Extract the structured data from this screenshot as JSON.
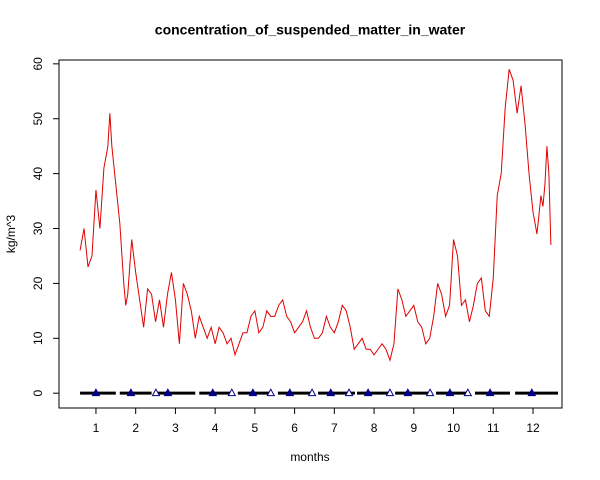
{
  "chart_data": {
    "type": "line",
    "title": "concentration_of_suspended_matter_in_water",
    "x_label": "months",
    "y_label": "kg/m^3",
    "xlim": [
      0.07,
      12.73
    ],
    "ylim": [
      -2.7,
      60.7
    ],
    "xticks": [
      1,
      2,
      3,
      4,
      5,
      6,
      7,
      8,
      9,
      10,
      11,
      12
    ],
    "yticks": [
      0,
      10,
      20,
      30,
      40,
      50,
      60
    ],
    "series": [
      {
        "color": "#e00000",
        "x": [
          0.6,
          0.7,
          0.8,
          0.9,
          1.0,
          1.1,
          1.2,
          1.3,
          1.35,
          1.4,
          1.5,
          1.6,
          1.7,
          1.75,
          1.8,
          1.9,
          2.0,
          2.1,
          2.2,
          2.3,
          2.4,
          2.5,
          2.6,
          2.7,
          2.8,
          2.9,
          3.0,
          3.1,
          3.2,
          3.3,
          3.4,
          3.5,
          3.6,
          3.7,
          3.8,
          3.9,
          4.0,
          4.1,
          4.2,
          4.3,
          4.4,
          4.5,
          4.6,
          4.7,
          4.8,
          4.9,
          5.0,
          5.1,
          5.2,
          5.3,
          5.4,
          5.5,
          5.6,
          5.7,
          5.8,
          5.9,
          6.0,
          6.1,
          6.2,
          6.3,
          6.4,
          6.5,
          6.6,
          6.7,
          6.8,
          6.9,
          7.0,
          7.1,
          7.2,
          7.3,
          7.4,
          7.5,
          7.6,
          7.7,
          7.8,
          7.9,
          8.0,
          8.1,
          8.2,
          8.3,
          8.4,
          8.5,
          8.6,
          8.7,
          8.8,
          8.9,
          9.0,
          9.1,
          9.2,
          9.3,
          9.4,
          9.5,
          9.6,
          9.7,
          9.8,
          9.9,
          10.0,
          10.1,
          10.2,
          10.3,
          10.4,
          10.5,
          10.6,
          10.7,
          10.8,
          10.9,
          11.0,
          11.1,
          11.2,
          11.3,
          11.4,
          11.5,
          11.6,
          11.7,
          11.8,
          11.9,
          12.0,
          12.1,
          12.2,
          12.25,
          12.3,
          12.35,
          12.4,
          12.45
        ],
        "values": [
          26,
          30,
          23,
          25,
          37,
          30,
          41,
          45,
          51,
          45,
          38,
          31,
          20,
          16,
          18,
          28,
          22,
          17,
          12,
          19,
          18,
          13,
          17,
          12,
          18,
          22,
          17,
          9,
          20,
          18,
          15,
          10,
          14,
          12,
          10,
          12,
          9,
          12,
          11,
          9,
          10,
          7,
          9,
          11,
          11,
          14,
          15,
          11,
          12,
          15,
          14,
          14,
          16,
          17,
          14,
          13,
          11,
          12,
          13,
          15,
          12,
          10,
          10,
          11,
          14,
          12,
          11,
          13,
          16,
          15,
          12,
          8,
          9,
          10,
          8,
          8,
          7,
          8,
          9,
          8,
          6,
          9,
          19,
          17,
          14,
          15,
          16,
          13,
          12,
          9,
          10,
          14,
          20,
          18,
          14,
          16,
          28,
          25,
          16,
          17,
          13,
          16,
          20,
          21,
          15,
          14,
          21,
          36,
          40,
          52,
          59,
          57,
          51,
          56,
          49,
          40,
          33,
          29,
          36,
          34,
          38,
          45,
          40,
          27
        ]
      }
    ],
    "segments": {
      "color": "#000000",
      "x0": [
        0.6,
        1.6,
        2.55,
        3.6,
        4.57,
        5.58,
        6.59,
        7.57,
        8.53,
        9.56,
        10.54,
        11.55
      ],
      "x1": [
        1.5,
        2.4,
        3.5,
        4.42,
        5.43,
        6.49,
        7.52,
        8.45,
        9.46,
        10.41,
        11.42,
        12.63
      ],
      "values": [
        0,
        0,
        0,
        0,
        0,
        0,
        0,
        0,
        0,
        0,
        0,
        0
      ]
    },
    "markers": [
      {
        "color": "#00008b",
        "x": [
          1.0,
          1.88,
          2.81,
          3.94,
          4.95,
          5.88,
          6.91,
          7.85,
          8.85,
          9.91,
          10.92,
          11.97
        ],
        "values": [
          0,
          0,
          0,
          0,
          0,
          0,
          0,
          0,
          0,
          0,
          0,
          0
        ]
      },
      {
        "color": "#ffffff",
        "x": [
          2.51,
          4.42,
          5.4,
          6.44,
          7.37,
          8.4,
          9.41,
          10.36
        ],
        "values": [
          0,
          0,
          0,
          0,
          0,
          0,
          0,
          0
        ]
      }
    ]
  }
}
